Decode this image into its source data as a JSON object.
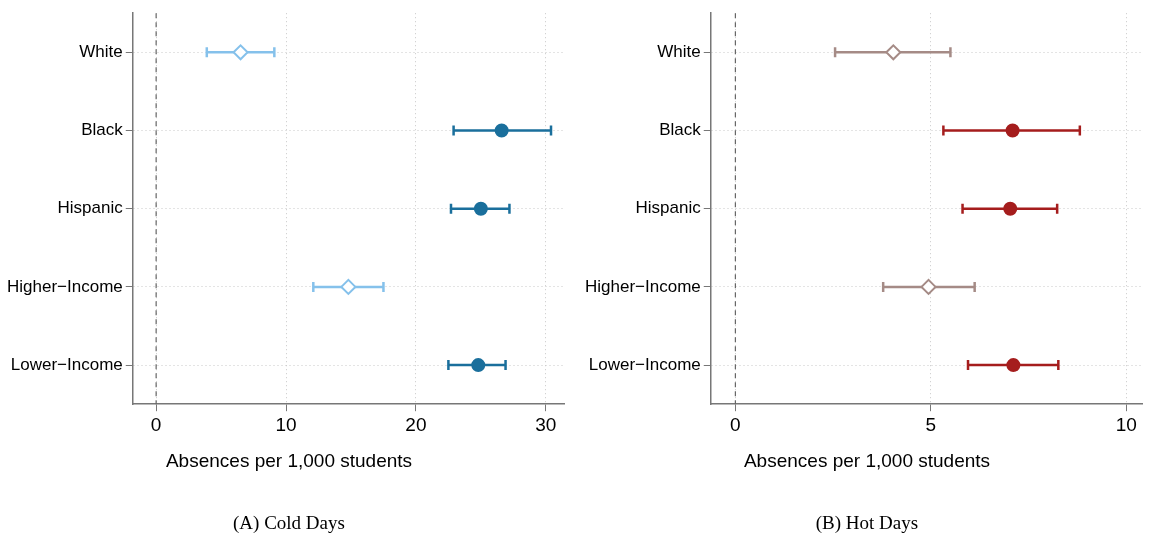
{
  "chart_data": [
    {
      "type": "scatter",
      "orientation": "horizontal",
      "title": "(A) Cold Days",
      "xlabel": "Absences per 1,000 students",
      "categories": [
        "White",
        "Black",
        "Hispanic",
        "Higher−Income",
        "Lower−Income"
      ],
      "series": [
        {
          "color": "#85c1eb",
          "marker": "diamond",
          "values": [
            6.5,
            null,
            null,
            14.8,
            null
          ],
          "errors": [
            [
              3.9,
              9.1
            ],
            null,
            null,
            [
              12.1,
              17.5
            ],
            null
          ]
        },
        {
          "color": "#1a6f9c",
          "marker": "circle",
          "values": [
            null,
            26.6,
            25.0,
            null,
            24.8
          ],
          "errors": [
            null,
            [
              22.9,
              30.4
            ],
            [
              22.7,
              27.2
            ],
            null,
            [
              22.5,
              26.9
            ]
          ]
        }
      ],
      "xlim": [
        -1.8,
        31.4
      ],
      "xticks": [
        0,
        10,
        20,
        30
      ],
      "ref_lines": [
        {
          "axis": "x",
          "value": 0,
          "color": "#666666",
          "line_style": "dashed"
        }
      ],
      "grid": true,
      "legend": false
    },
    {
      "type": "scatter",
      "orientation": "horizontal",
      "title": "(B) Hot Days",
      "xlabel": "Absences per 1,000 students",
      "categories": [
        "White",
        "Black",
        "Hispanic",
        "Higher−Income",
        "Lower−Income"
      ],
      "series": [
        {
          "color": "#a58b86",
          "marker": "diamond",
          "values": [
            4.04,
            null,
            null,
            4.94,
            null
          ],
          "errors": [
            [
              2.55,
              5.5
            ],
            null,
            null,
            [
              3.78,
              6.12
            ],
            null
          ]
        },
        {
          "color": "#a51d1d",
          "marker": "circle",
          "values": [
            null,
            7.09,
            7.03,
            null,
            7.11
          ],
          "errors": [
            null,
            [
              5.32,
              8.81
            ],
            [
              5.81,
              8.23
            ],
            null,
            [
              5.95,
              8.26
            ]
          ]
        }
      ],
      "xlim": [
        -0.63,
        10.4
      ],
      "xticks": [
        0,
        5,
        10
      ],
      "ref_lines": [
        {
          "axis": "x",
          "value": 0,
          "color": "#666666",
          "line_style": "dashed"
        }
      ],
      "grid": true,
      "legend": false
    }
  ]
}
